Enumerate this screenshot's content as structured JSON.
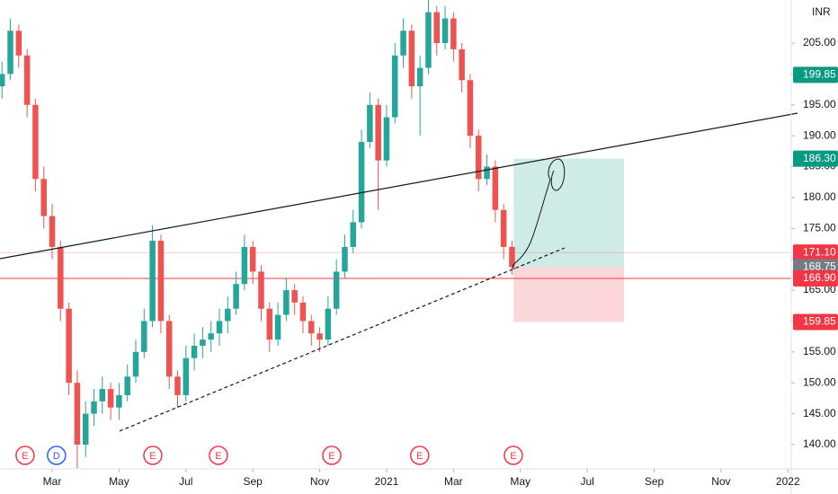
{
  "chart_data": {
    "type": "candlestick",
    "currency": "INR",
    "xlim": [
      0.44,
      24.1
    ],
    "xticks": [
      {
        "value": 2,
        "label": "Mar"
      },
      {
        "value": 4,
        "label": "May"
      },
      {
        "value": 6,
        "label": "Jul"
      },
      {
        "value": 8,
        "label": "Sep"
      },
      {
        "value": 10,
        "label": "Nov"
      },
      {
        "value": 12,
        "label": "2021"
      },
      {
        "value": 14,
        "label": "Mar"
      },
      {
        "value": 16,
        "label": "May"
      },
      {
        "value": 18,
        "label": "Jul"
      },
      {
        "value": 20,
        "label": "Sep"
      },
      {
        "value": 22,
        "label": "Nov"
      },
      {
        "value": 24,
        "label": "2022"
      }
    ],
    "ylim": [
      136.07,
      211.98
    ],
    "yticks": [
      {
        "value": 140,
        "label": "140.00"
      },
      {
        "value": 145,
        "label": "145.00"
      },
      {
        "value": 150,
        "label": "150.00"
      },
      {
        "value": 155,
        "label": "155.00"
      },
      {
        "value": 160,
        "label": "160.00"
      },
      {
        "value": 165,
        "label": "165.00"
      },
      {
        "value": 170,
        "label": "170.00"
      },
      {
        "value": 175,
        "label": "175.00"
      },
      {
        "value": 180,
        "label": "180.00"
      },
      {
        "value": 185,
        "label": "185.00"
      },
      {
        "value": 190,
        "label": "190.00"
      },
      {
        "value": 195,
        "label": "195.00"
      },
      {
        "value": 200,
        "label": "200.00"
      },
      {
        "value": 205,
        "label": "205.00"
      }
    ],
    "up_color": "#26a69a",
    "down_color": "#ef5350",
    "x": [
      0.5,
      0.75,
      1,
      1.25,
      1.5,
      1.75,
      2,
      2.25,
      2.5,
      2.75,
      3,
      3.25,
      3.5,
      3.75,
      4,
      4.25,
      4.5,
      4.75,
      5,
      5.25,
      5.5,
      5.75,
      6,
      6.25,
      6.5,
      6.75,
      7,
      7.25,
      7.5,
      7.75,
      8,
      8.25,
      8.5,
      8.75,
      9,
      9.25,
      9.5,
      9.75,
      10,
      10.25,
      10.5,
      10.75,
      11,
      11.25,
      11.5,
      11.75,
      12,
      12.25,
      12.5,
      12.75,
      13,
      13.25,
      13.5,
      13.75,
      14,
      14.25,
      14.5,
      14.75,
      15,
      15.25,
      15.5,
      15.75
    ],
    "ohlc": [
      [
        198,
        202,
        196,
        200
      ],
      [
        200,
        209,
        199,
        207
      ],
      [
        207,
        208,
        201,
        203
      ],
      [
        203,
        204,
        193,
        195
      ],
      [
        195,
        196,
        181,
        183
      ],
      [
        183,
        185,
        175,
        177
      ],
      [
        177,
        179,
        170,
        172
      ],
      [
        172,
        173,
        160,
        162
      ],
      [
        162,
        163,
        148,
        150
      ],
      [
        150,
        152,
        136,
        140
      ],
      [
        140,
        147,
        138,
        145
      ],
      [
        145,
        149,
        143,
        147
      ],
      [
        147,
        151,
        145,
        149
      ],
      [
        149,
        150,
        144,
        146
      ],
      [
        146,
        150,
        144,
        148
      ],
      [
        148,
        153,
        147,
        151
      ],
      [
        151,
        157,
        150,
        155
      ],
      [
        155,
        162,
        154,
        160
      ],
      [
        160,
        175.5,
        159,
        173
      ],
      [
        173,
        174,
        158,
        160
      ],
      [
        160,
        161,
        149,
        151
      ],
      [
        151,
        152,
        146,
        148
      ],
      [
        148,
        156,
        147,
        154
      ],
      [
        154,
        158,
        152,
        156
      ],
      [
        156,
        159,
        154,
        157
      ],
      [
        157,
        160,
        155,
        158
      ],
      [
        158,
        162,
        156,
        160
      ],
      [
        160,
        164,
        158,
        162
      ],
      [
        162,
        168,
        161,
        166
      ],
      [
        166,
        174,
        165,
        172
      ],
      [
        172,
        173,
        166,
        168
      ],
      [
        168,
        169,
        160,
        162
      ],
      [
        162,
        163,
        155,
        157
      ],
      [
        157,
        163,
        156,
        161
      ],
      [
        161,
        167,
        160,
        165
      ],
      [
        165,
        166,
        161,
        163
      ],
      [
        163,
        164,
        158,
        160
      ],
      [
        160,
        161,
        156,
        158
      ],
      [
        158,
        159,
        155,
        157
      ],
      [
        157,
        164,
        156,
        162
      ],
      [
        162,
        170,
        161,
        168
      ],
      [
        168,
        174,
        167,
        172
      ],
      [
        172,
        178,
        171,
        176
      ],
      [
        176,
        191,
        175,
        189
      ],
      [
        189,
        197,
        188,
        195
      ],
      [
        195,
        196,
        178,
        186
      ],
      [
        186,
        195,
        185,
        193
      ],
      [
        193,
        205,
        192,
        203
      ],
      [
        203,
        209,
        201,
        207
      ],
      [
        207,
        208,
        196,
        198
      ],
      [
        198,
        203,
        190,
        201
      ],
      [
        201,
        212,
        200,
        210
      ],
      [
        210,
        211,
        203,
        205
      ],
      [
        205,
        211,
        204,
        209
      ],
      [
        209,
        210,
        202,
        204
      ],
      [
        204,
        205,
        197,
        199
      ],
      [
        199,
        200,
        188,
        190
      ],
      [
        190,
        191,
        181,
        183
      ],
      [
        183,
        187,
        182,
        185
      ],
      [
        185,
        186,
        176,
        178
      ],
      [
        178,
        179,
        170,
        172
      ],
      [
        172,
        173,
        167.5,
        168.75
      ]
    ],
    "price_labels": [
      {
        "value": 199.85,
        "label": "199.85",
        "color": "#089981"
      },
      {
        "value": 186.3,
        "label": "186.30",
        "color": "#089981"
      },
      {
        "value": 171.1,
        "label": "171.10",
        "color": "#f23645",
        "line": true
      },
      {
        "value": 168.75,
        "label": "168.75",
        "color": "#787b86"
      },
      {
        "value": 166.9,
        "label": "166.90",
        "color": "#f23645",
        "line": true
      },
      {
        "value": 159.85,
        "label": "159.85",
        "color": "#f23645"
      }
    ],
    "position": {
      "start": 15.8,
      "end": 19.1,
      "target": 186.3,
      "entry": 168.75,
      "stop": 159.85
    },
    "events": [
      {
        "x": 1.19,
        "label": "E"
      },
      {
        "x": 2.13,
        "label": "D"
      },
      {
        "x": 5.01,
        "label": "E"
      },
      {
        "x": 6.97,
        "label": "E"
      },
      {
        "x": 10.36,
        "label": "E"
      },
      {
        "x": 12.99,
        "label": "E"
      },
      {
        "x": 15.79,
        "label": "E"
      }
    ]
  }
}
